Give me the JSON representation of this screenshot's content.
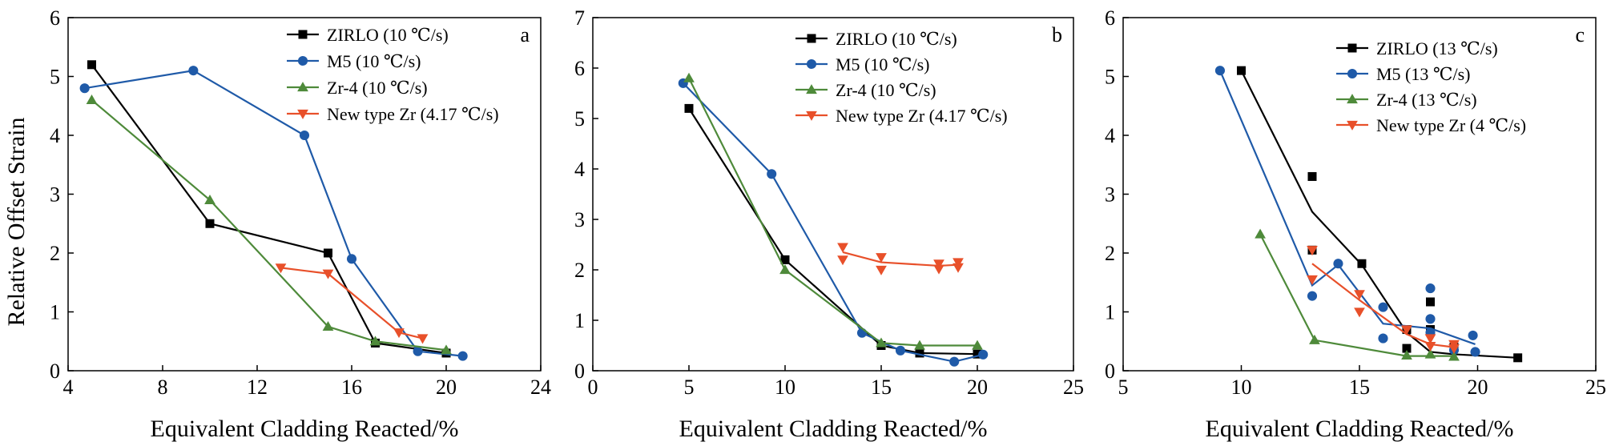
{
  "figure": {
    "ylabel": "Relative Offset Strain",
    "colors": {
      "zirlo": "#000000",
      "m5": "#1f5aa8",
      "zr4": "#4e8a3a",
      "newtype": "#e8502a"
    }
  },
  "chart_data": [
    {
      "type": "line",
      "panel_letter": "a",
      "xlabel": "Equivalent Cladding Reacted/%",
      "ylabel": "Relative Offset Strain",
      "xlim": [
        4,
        24
      ],
      "ylim": [
        0,
        6
      ],
      "xticks": [
        4,
        8,
        12,
        16,
        20,
        24
      ],
      "yticks": [
        0,
        1,
        2,
        3,
        4,
        5,
        6
      ],
      "grid": false,
      "legend_position": "top-right",
      "series": [
        {
          "name": "ZIRLO (10 ℃/s)",
          "color_key": "zirlo",
          "marker": "square",
          "points": [
            [
              5,
              5.2
            ],
            [
              10,
              2.5
            ],
            [
              15,
              2.0
            ],
            [
              17,
              0.47
            ],
            [
              20,
              0.3
            ]
          ],
          "line": [
            [
              5,
              5.2
            ],
            [
              10,
              2.5
            ],
            [
              15,
              2.0
            ],
            [
              17,
              0.47
            ],
            [
              20,
              0.3
            ]
          ]
        },
        {
          "name": "M5 (10 ℃/s)",
          "color_key": "m5",
          "marker": "circle",
          "points": [
            [
              4.7,
              4.8
            ],
            [
              9.3,
              5.1
            ],
            [
              14,
              4.0
            ],
            [
              16,
              1.9
            ],
            [
              18.8,
              0.33
            ],
            [
              20.7,
              0.25
            ]
          ],
          "line": [
            [
              4.7,
              4.8
            ],
            [
              9.3,
              5.1
            ],
            [
              14,
              4.0
            ],
            [
              16,
              1.9
            ],
            [
              18.8,
              0.33
            ],
            [
              20.7,
              0.25
            ]
          ]
        },
        {
          "name": "Zr-4 (10 ℃/s)",
          "color_key": "zr4",
          "marker": "triangle-up",
          "points": [
            [
              5,
              4.6
            ],
            [
              10,
              2.9
            ],
            [
              15,
              0.75
            ],
            [
              17,
              0.5
            ],
            [
              20,
              0.35
            ]
          ],
          "line": [
            [
              5,
              4.6
            ],
            [
              10,
              2.9
            ],
            [
              15,
              0.75
            ],
            [
              17,
              0.5
            ],
            [
              20,
              0.35
            ]
          ]
        },
        {
          "name": "New type Zr (4.17 ℃/s)",
          "color_key": "newtype",
          "marker": "triangle-down",
          "points": [
            [
              13,
              1.75
            ],
            [
              15,
              1.65
            ],
            [
              18,
              0.65
            ],
            [
              19,
              0.55
            ]
          ],
          "line": [
            [
              13,
              1.75
            ],
            [
              15,
              1.65
            ],
            [
              18,
              0.65
            ],
            [
              19,
              0.55
            ]
          ]
        }
      ]
    },
    {
      "type": "line",
      "panel_letter": "b",
      "xlabel": "Equivalent Cladding Reacted/%",
      "ylabel": "",
      "xlim": [
        0,
        25
      ],
      "ylim": [
        0,
        7
      ],
      "xticks": [
        0,
        5,
        10,
        15,
        20,
        25
      ],
      "yticks": [
        0,
        1,
        2,
        3,
        4,
        5,
        6,
        7
      ],
      "grid": false,
      "legend_position": "top-right",
      "series": [
        {
          "name": "ZIRLO (10 ℃/s)",
          "color_key": "zirlo",
          "marker": "square",
          "points": [
            [
              5,
              5.2
            ],
            [
              10,
              2.2
            ],
            [
              15,
              0.5
            ],
            [
              17,
              0.35
            ],
            [
              20,
              0.33
            ]
          ],
          "line": [
            [
              5,
              5.2
            ],
            [
              10,
              2.2
            ],
            [
              15,
              0.5
            ],
            [
              17,
              0.35
            ],
            [
              20,
              0.33
            ]
          ]
        },
        {
          "name": "M5 (10 ℃/s)",
          "color_key": "m5",
          "marker": "circle",
          "points": [
            [
              4.7,
              5.7
            ],
            [
              9.3,
              3.9
            ],
            [
              14,
              0.75
            ],
            [
              16,
              0.4
            ],
            [
              18.8,
              0.18
            ],
            [
              20.3,
              0.32
            ]
          ],
          "line": [
            [
              4.7,
              5.7
            ],
            [
              9.3,
              3.9
            ],
            [
              14,
              0.75
            ],
            [
              16,
              0.4
            ],
            [
              18.8,
              0.18
            ],
            [
              20.3,
              0.32
            ]
          ]
        },
        {
          "name": "Zr-4 (10 ℃/s)",
          "color_key": "zr4",
          "marker": "triangle-up",
          "points": [
            [
              5,
              5.8
            ],
            [
              10,
              2.0
            ],
            [
              15,
              0.55
            ],
            [
              17,
              0.5
            ],
            [
              20,
              0.5
            ]
          ],
          "line": [
            [
              5,
              5.8
            ],
            [
              10,
              2.0
            ],
            [
              15,
              0.55
            ],
            [
              17,
              0.5
            ],
            [
              20,
              0.5
            ]
          ]
        },
        {
          "name": "New type Zr (4.17 ℃/s)",
          "color_key": "newtype",
          "marker": "triangle-down",
          "points": [
            [
              13,
              2.45
            ],
            [
              13,
              2.2
            ],
            [
              15,
              2.25
            ],
            [
              15,
              2.0
            ],
            [
              18,
              2.12
            ],
            [
              18,
              2.02
            ],
            [
              19,
              2.15
            ],
            [
              19,
              2.05
            ]
          ],
          "line": [
            [
              13,
              2.35
            ],
            [
              15,
              2.15
            ],
            [
              18,
              2.08
            ],
            [
              19,
              2.1
            ]
          ]
        }
      ]
    },
    {
      "type": "line",
      "panel_letter": "c",
      "xlabel": "Equivalent Cladding Reacted/%",
      "ylabel": "",
      "xlim": [
        5,
        25
      ],
      "ylim": [
        0,
        6
      ],
      "xticks": [
        5,
        10,
        15,
        20,
        25
      ],
      "yticks": [
        0,
        1,
        2,
        3,
        4,
        5,
        6
      ],
      "grid": false,
      "legend_position": "top-right",
      "series": [
        {
          "name": "ZIRLO (13 ℃/s)",
          "color_key": "zirlo",
          "marker": "square",
          "points": [
            [
              10,
              5.1
            ],
            [
              13,
              3.3
            ],
            [
              13,
              2.05
            ],
            [
              15.1,
              1.82
            ],
            [
              17,
              0.7
            ],
            [
              17,
              0.38
            ],
            [
              18,
              1.17
            ],
            [
              18,
              0.7
            ],
            [
              19,
              0.4
            ],
            [
              21.7,
              0.22
            ]
          ],
          "line": [
            [
              10,
              5.1
            ],
            [
              13,
              2.7
            ],
            [
              15.1,
              1.8
            ],
            [
              17,
              0.65
            ],
            [
              18,
              0.32
            ],
            [
              19,
              0.28
            ],
            [
              21.7,
              0.22
            ]
          ]
        },
        {
          "name": "M5 (13 ℃/s)",
          "color_key": "m5",
          "marker": "circle",
          "points": [
            [
              9.1,
              5.1
            ],
            [
              13,
              1.27
            ],
            [
              14.1,
              1.82
            ],
            [
              16,
              1.08
            ],
            [
              16,
              0.55
            ],
            [
              18,
              1.4
            ],
            [
              18,
              0.88
            ],
            [
              18,
              0.65
            ],
            [
              19,
              0.35
            ],
            [
              19.8,
              0.6
            ],
            [
              19.9,
              0.32
            ]
          ],
          "line": [
            [
              9.1,
              5.1
            ],
            [
              13,
              1.45
            ],
            [
              14.1,
              1.8
            ],
            [
              16,
              0.8
            ],
            [
              18,
              0.72
            ],
            [
              19.9,
              0.45
            ]
          ]
        },
        {
          "name": "Zr-4 (13 ℃/s)",
          "color_key": "zr4",
          "marker": "triangle-up",
          "points": [
            [
              10.8,
              2.32
            ],
            [
              13.1,
              0.52
            ],
            [
              17,
              0.26
            ],
            [
              18,
              0.28
            ],
            [
              19,
              0.24
            ]
          ],
          "line": [
            [
              10.8,
              2.32
            ],
            [
              13.1,
              0.52
            ],
            [
              17,
              0.25
            ],
            [
              19,
              0.25
            ]
          ]
        },
        {
          "name": "New type Zr (4 ℃/s)",
          "color_key": "newtype",
          "marker": "triangle-down",
          "points": [
            [
              13,
              2.05
            ],
            [
              13,
              1.55
            ],
            [
              15,
              1.3
            ],
            [
              15,
              1.0
            ],
            [
              17,
              0.7
            ],
            [
              18,
              0.55
            ],
            [
              18,
              0.42
            ],
            [
              19,
              0.45
            ],
            [
              19,
              0.38
            ]
          ],
          "line": [
            [
              13,
              1.82
            ],
            [
              15,
              1.2
            ],
            [
              17,
              0.62
            ],
            [
              18,
              0.45
            ],
            [
              19,
              0.4
            ]
          ]
        }
      ]
    }
  ]
}
